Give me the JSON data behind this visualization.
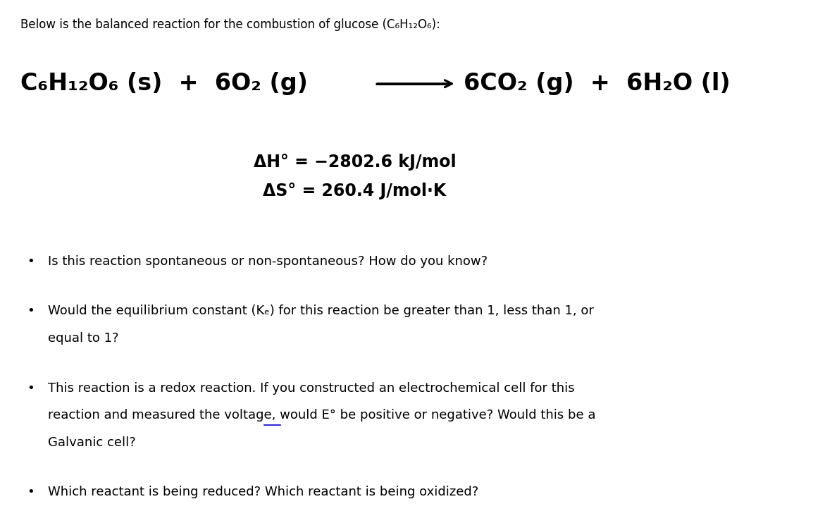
{
  "background_color": "#ffffff",
  "intro_text": "Below is the balanced reaction for the combustion of glucose (C₆H₁₂O₆):",
  "left_reaction": "C₆H₁₂O₆ (s)  +  6O₂ (g)",
  "right_reaction": "6CO₂ (g)  +  6H₂O (l)",
  "delta_h": "ΔH° = −2802.6 kJ/mol",
  "delta_s": "ΔS° = 260.4 J/mol·K",
  "bullet1": "Is this reaction spontaneous or non-spontaneous? How do you know?",
  "bullet2_line1": "Would the equilibrium constant (Kₑ) for this reaction be greater than 1, less than 1, or",
  "bullet2_line2": "equal to 1?",
  "bullet3_line1": "This reaction is a redox reaction. If you constructed an electrochemical cell for this",
  "bullet3_line2": "reaction and measured the voltage, would E° be positive or negative? Would this be a",
  "bullet3_line3": "Galvanic cell?",
  "bullet4": "Which reactant is being reduced? Which reactant is being oxidized?",
  "reaction_fontsize": 24,
  "thermo_fontsize": 17,
  "bullet_fontsize": 13,
  "intro_fontsize": 12
}
